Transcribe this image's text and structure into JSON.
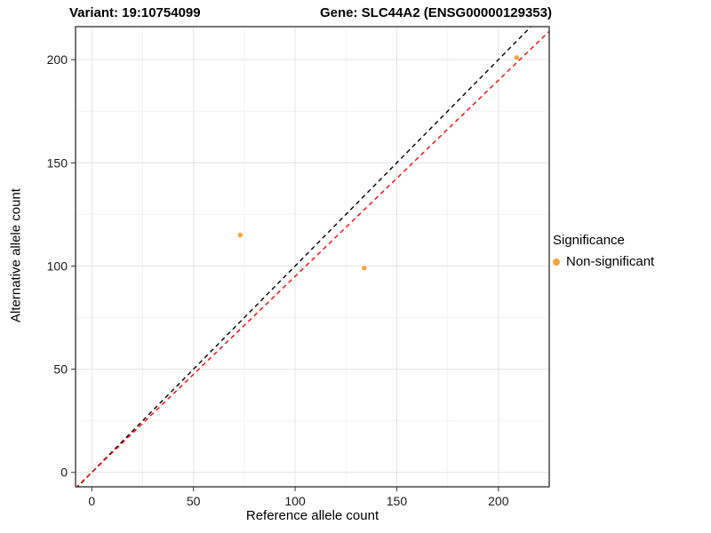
{
  "chart_data": {
    "type": "scatter",
    "title_left": "Variant: 19:10754099",
    "title_right": "Gene: SLC44A2 (ENSG00000129353)",
    "xlabel": "Reference allele count",
    "ylabel": "Alternative allele count",
    "xlim": [
      -8,
      225
    ],
    "ylim": [
      -7,
      216
    ],
    "xticks": [
      0,
      50,
      100,
      150,
      200
    ],
    "yticks": [
      0,
      50,
      100,
      150,
      200
    ],
    "grid": true,
    "point_color": "#F9A33B",
    "points": [
      {
        "x": 73,
        "y": 115
      },
      {
        "x": 134,
        "y": 99
      },
      {
        "x": 209,
        "y": 201
      }
    ],
    "lines": [
      {
        "name": "identity-line",
        "slope": 1.0,
        "intercept": 0,
        "color": "#000000",
        "style": "dashed"
      },
      {
        "name": "expected-ratio-line",
        "slope": 0.95,
        "intercept": 0,
        "color": "#FF0000",
        "style": "dashed"
      }
    ],
    "legend": {
      "position": "right",
      "title": "Significance",
      "entries": [
        {
          "label": "Non-significant",
          "color": "#F9A33B"
        }
      ]
    },
    "colors": {
      "panel_border": "#2b2b2b",
      "grid_major": "#e4e4e4",
      "grid_minor": "#f2f2f2",
      "tick_label": "#1a1a1a"
    }
  }
}
